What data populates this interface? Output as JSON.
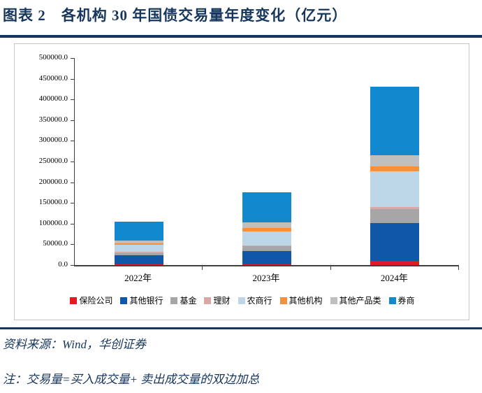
{
  "title": "图表 2　各机构 30 年国债交易量年度变化（亿元）",
  "source_note": "资料来源：Wind，华创证券",
  "footnote": "注：交易量=买入成交量+ 卖出成交量的双边加总",
  "accent_color": "#17365D",
  "chart_data": {
    "type": "bar",
    "stacked": true,
    "title": "各机构 30 年国债交易量年度变化（亿元）",
    "xlabel": "",
    "ylabel": "",
    "ylim": [
      0,
      500000
    ],
    "ytick_step": 50000,
    "y_tick_labels": [
      "0.0",
      "50000.0",
      "100000.0",
      "150000.0",
      "200000.0",
      "250000.0",
      "300000.0",
      "350000.0",
      "400000.0",
      "450000.0",
      "500000.0"
    ],
    "grid": false,
    "legend_position": "bottom",
    "categories": [
      "2022年",
      "2023年",
      "2024年"
    ],
    "series": [
      {
        "name": "保险公司",
        "color": "#E11B22",
        "values": [
          2000,
          2500,
          10000
        ]
      },
      {
        "name": "其他银行",
        "color": "#0F58A8",
        "values": [
          21000,
          31500,
          92000
        ]
      },
      {
        "name": "基金",
        "color": "#A6A6A6",
        "values": [
          5000,
          11000,
          34000
        ]
      },
      {
        "name": "理财",
        "color": "#D9A7A7",
        "values": [
          4000,
          2000,
          4000
        ]
      },
      {
        "name": "农商行",
        "color": "#BDD7E9",
        "values": [
          16500,
          35000,
          86000
        ]
      },
      {
        "name": "其他机构",
        "color": "#F5913D",
        "values": [
          4500,
          8000,
          12000
        ]
      },
      {
        "name": "其他产品类",
        "color": "#BFBFBF",
        "values": [
          5500,
          12500,
          28000
        ]
      },
      {
        "name": "券商",
        "color": "#1289CF",
        "values": [
          46500,
          74000,
          165000
        ]
      }
    ],
    "totals": [
      105000,
      176500,
      431000
    ]
  }
}
